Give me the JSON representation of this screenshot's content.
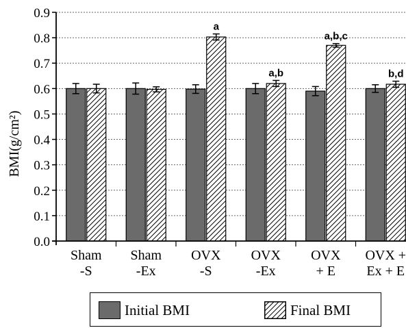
{
  "chart_data": {
    "type": "bar",
    "title": "",
    "xlabel": "",
    "ylabel": "BMI(g/cm²)",
    "ylim": [
      0,
      0.9
    ],
    "yticks": [
      "0.0",
      "0.1",
      "0.2",
      "0.3",
      "0.4",
      "0.5",
      "0.6",
      "0.7",
      "0.8",
      "0.9"
    ],
    "grid": true,
    "legend_position": "bottom",
    "categories": [
      [
        "Sham",
        "-S"
      ],
      [
        "Sham",
        "-Ex"
      ],
      [
        "OVX",
        "-S"
      ],
      [
        "OVX",
        "-Ex"
      ],
      [
        "OVX",
        "+ E"
      ],
      [
        "OVX +",
        "Ex + E"
      ]
    ],
    "series": [
      {
        "name": "Initial BMI",
        "color": "#6b6b6b",
        "pattern": "solid",
        "values": [
          0.6,
          0.6,
          0.598,
          0.6,
          0.59,
          0.6
        ],
        "errors": [
          0.02,
          0.022,
          0.017,
          0.02,
          0.018,
          0.015
        ]
      },
      {
        "name": "Final BMI",
        "color": "#ffffff",
        "pattern": "diagonal-hatch",
        "values": [
          0.6,
          0.597,
          0.803,
          0.62,
          0.77,
          0.617
        ],
        "errors": [
          0.017,
          0.01,
          0.012,
          0.012,
          0.007,
          0.012
        ]
      }
    ],
    "annotations": [
      "",
      "",
      "a",
      "a,b",
      "a,b,c",
      "b,d"
    ]
  }
}
